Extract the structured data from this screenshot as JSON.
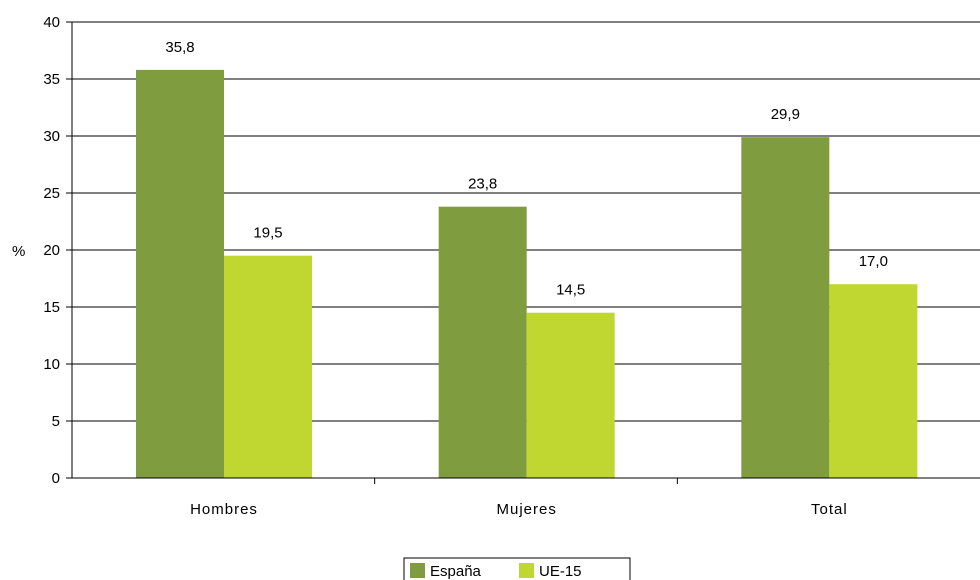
{
  "chart_data": {
    "type": "bar",
    "title": "",
    "xlabel": "",
    "ylabel": "%",
    "ylim": [
      0,
      40
    ],
    "yticks": [
      0,
      5,
      10,
      15,
      20,
      25,
      30,
      35,
      40
    ],
    "grid": true,
    "legend_position": "bottom",
    "categories": [
      "Hombres",
      "Mujeres",
      "Total"
    ],
    "series": [
      {
        "name": "España",
        "color": "#7f9c3e",
        "values": [
          35.8,
          23.8,
          29.9
        ],
        "labels": [
          "35,8",
          "23,8",
          "29,9"
        ]
      },
      {
        "name": "UE-15",
        "color": "#bfd730",
        "values": [
          19.5,
          14.5,
          17.0
        ],
        "labels": [
          "19,5",
          "14,5",
          "17,0"
        ]
      }
    ]
  }
}
